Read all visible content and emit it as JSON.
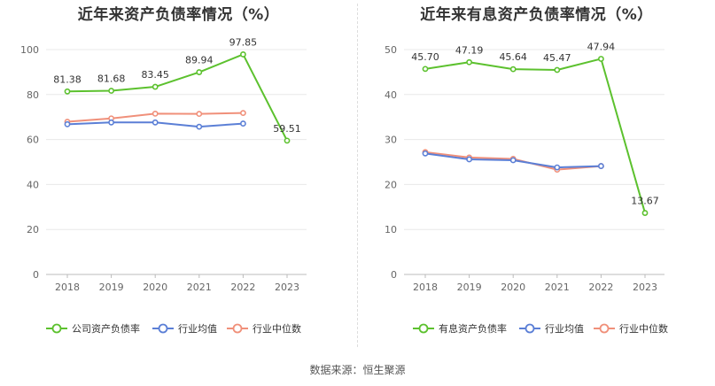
{
  "charts": [
    {
      "title": "近年来资产负债率情况（%）",
      "chart_data": {
        "type": "line",
        "categories": [
          "2018",
          "2019",
          "2020",
          "2021",
          "2022",
          "2023"
        ],
        "ylim": [
          0,
          100
        ],
        "yticks": [
          "0",
          "20",
          "40",
          "60",
          "80",
          "100"
        ],
        "grid": true,
        "legend_position": "bottom",
        "series": [
          {
            "name": "公司资产负债率",
            "color": "#5cc12e",
            "values": [
              81.38,
              81.68,
              83.45,
              89.94,
              97.85,
              59.51
            ],
            "labels": [
              "81.38",
              "81.68",
              "83.45",
              "89.94",
              "97.85",
              "59.51"
            ]
          },
          {
            "name": "行业均值",
            "color": "#5b7fd6",
            "values": [
              66.8,
              67.6,
              67.6,
              65.7,
              67.1,
              null
            ],
            "labels": []
          },
          {
            "name": "行业中位数",
            "color": "#f0907a",
            "values": [
              67.9,
              69.4,
              71.5,
              71.4,
              71.8,
              null
            ],
            "labels": []
          }
        ]
      }
    },
    {
      "title": "近年来有息资产负债率情况（%）",
      "chart_data": {
        "type": "line",
        "categories": [
          "2018",
          "2019",
          "2020",
          "2021",
          "2022",
          "2023"
        ],
        "ylim": [
          0,
          50
        ],
        "yticks": [
          "0",
          "10",
          "20",
          "30",
          "40",
          "50"
        ],
        "grid": true,
        "legend_position": "bottom",
        "series": [
          {
            "name": "有息资产负债率",
            "color": "#5cc12e",
            "values": [
              45.7,
              47.19,
              45.64,
              45.47,
              47.94,
              13.67
            ],
            "labels": [
              "45.70",
              "47.19",
              "45.64",
              "45.47",
              "47.94",
              "13.67"
            ]
          },
          {
            "name": "行业均值",
            "color": "#5b7fd6",
            "values": [
              26.9,
              25.6,
              25.4,
              23.8,
              24.1,
              null
            ],
            "labels": []
          },
          {
            "name": "行业中位数",
            "color": "#f0907a",
            "values": [
              27.2,
              26.0,
              25.7,
              23.3,
              24.1,
              null
            ],
            "labels": []
          }
        ]
      }
    }
  ],
  "source_text": "数据来源：恒生聚源"
}
